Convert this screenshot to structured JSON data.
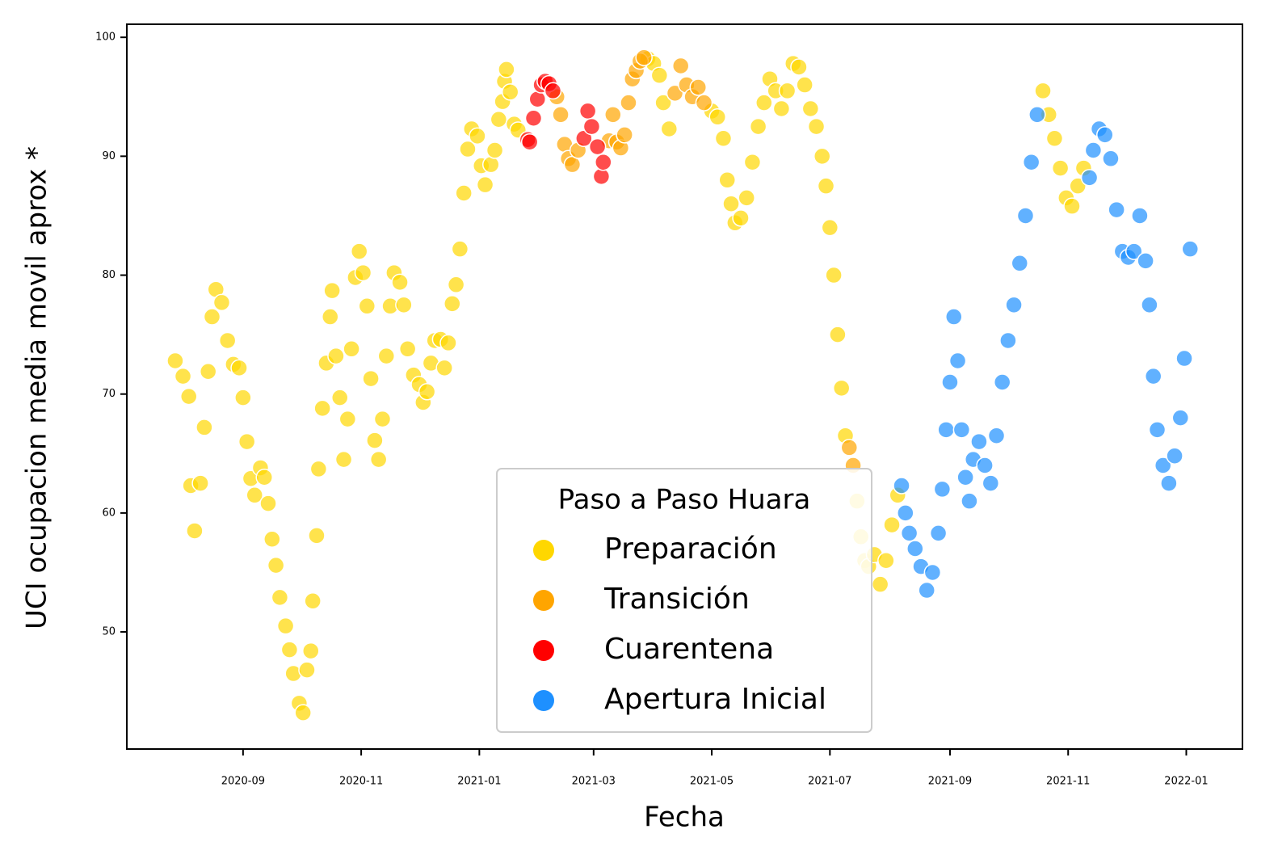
{
  "chart_data": {
    "type": "scatter",
    "x_label": "Fecha",
    "y_label": "UCI ocupacion media movil aprox *",
    "legend_title": "Paso a Paso Huara",
    "legend_position": "lower center",
    "xlim": [
      "2020-07-03",
      "2022-01-30"
    ],
    "ylim": [
      40.15,
      101.1
    ],
    "xticks": [
      "2020-09",
      "2020-11",
      "2021-01",
      "2021-03",
      "2021-05",
      "2021-07",
      "2021-09",
      "2021-11",
      "2022-01"
    ],
    "yticks": [
      50,
      60,
      70,
      80,
      90,
      100
    ],
    "series": [
      {
        "name": "Preparación",
        "color": "#FFD700",
        "x": [
          "2020-07-28",
          "2020-08-01",
          "2020-08-04",
          "2020-08-05",
          "2020-08-07",
          "2020-08-10",
          "2020-08-12",
          "2020-08-14",
          "2020-08-16",
          "2020-08-18",
          "2020-08-21",
          "2020-08-24",
          "2020-08-27",
          "2020-08-30",
          "2020-09-01",
          "2020-09-03",
          "2020-09-05",
          "2020-09-07",
          "2020-09-10",
          "2020-09-12",
          "2020-09-14",
          "2020-09-16",
          "2020-09-18",
          "2020-09-20",
          "2020-09-23",
          "2020-09-25",
          "2020-09-27",
          "2020-09-30",
          "2020-10-02",
          "2020-10-04",
          "2020-10-06",
          "2020-10-07",
          "2020-10-09",
          "2020-10-10",
          "2020-10-12",
          "2020-10-14",
          "2020-10-16",
          "2020-10-17",
          "2020-10-19",
          "2020-10-21",
          "2020-10-23",
          "2020-10-25",
          "2020-10-27",
          "2020-10-29",
          "2020-10-31",
          "2020-11-02",
          "2020-11-04",
          "2020-11-06",
          "2020-11-08",
          "2020-11-10",
          "2020-11-12",
          "2020-11-14",
          "2020-11-16",
          "2020-11-18",
          "2020-11-21",
          "2020-11-23",
          "2020-11-25",
          "2020-11-28",
          "2020-12-01",
          "2020-12-03",
          "2020-12-05",
          "2020-12-07",
          "2020-12-09",
          "2020-12-12",
          "2020-12-14",
          "2020-12-16",
          "2020-12-18",
          "2020-12-20",
          "2020-12-22",
          "2020-12-24",
          "2020-12-26",
          "2020-12-28",
          "2020-12-31",
          "2021-01-02",
          "2021-01-04",
          "2021-01-07",
          "2021-01-09",
          "2021-01-11",
          "2021-01-13",
          "2021-01-14",
          "2021-01-15",
          "2021-01-17",
          "2021-01-19",
          "2021-01-21",
          "2021-03-29",
          "2021-04-01",
          "2021-04-04",
          "2021-04-06",
          "2021-04-09",
          "2021-05-01",
          "2021-05-04",
          "2021-05-07",
          "2021-05-09",
          "2021-05-11",
          "2021-05-13",
          "2021-05-16",
          "2021-05-19",
          "2021-05-22",
          "2021-05-25",
          "2021-05-28",
          "2021-05-31",
          "2021-06-03",
          "2021-06-06",
          "2021-06-09",
          "2021-06-12",
          "2021-06-15",
          "2021-06-18",
          "2021-06-21",
          "2021-06-24",
          "2021-06-27",
          "2021-06-29",
          "2021-07-01",
          "2021-07-03",
          "2021-07-05",
          "2021-07-07",
          "2021-07-09",
          "2021-07-15",
          "2021-07-17",
          "2021-07-19",
          "2021-07-21",
          "2021-07-24",
          "2021-07-27",
          "2021-07-30",
          "2021-08-02",
          "2021-08-05",
          "2021-10-19",
          "2021-10-22",
          "2021-10-25",
          "2021-10-28",
          "2021-10-31",
          "2021-11-03",
          "2021-11-06",
          "2021-11-09"
        ],
        "values": [
          72.8,
          71.5,
          69.8,
          62.3,
          58.5,
          62.5,
          67.2,
          71.9,
          76.5,
          78.8,
          77.7,
          74.5,
          72.5,
          72.2,
          69.7,
          66,
          62.9,
          61.5,
          63.8,
          63,
          60.8,
          57.8,
          55.6,
          52.9,
          50.5,
          48.5,
          46.5,
          44,
          43.2,
          46.8,
          48.4,
          52.6,
          58.1,
          63.7,
          68.8,
          72.6,
          76.5,
          78.7,
          73.2,
          69.7,
          64.5,
          67.9,
          73.8,
          79.8,
          82,
          80.2,
          77.4,
          71.3,
          66.1,
          64.5,
          67.9,
          73.2,
          77.4,
          80.2,
          79.4,
          77.5,
          73.8,
          71.6,
          70.8,
          69.3,
          70.2,
          72.6,
          74.5,
          74.6,
          72.2,
          74.3,
          77.6,
          79.2,
          82.2,
          86.9,
          90.6,
          92.3,
          91.7,
          89.2,
          87.6,
          89.3,
          90.5,
          93.1,
          94.6,
          96.3,
          97.3,
          95.4,
          92.7,
          92.2,
          98.2,
          97.8,
          96.8,
          94.5,
          92.3,
          93.8,
          93.3,
          91.5,
          88,
          86,
          84.4,
          84.8,
          86.5,
          89.5,
          92.5,
          94.5,
          96.5,
          95.5,
          94,
          95.5,
          97.8,
          97.5,
          96,
          94,
          92.5,
          90,
          87.5,
          84,
          80,
          75,
          70.5,
          66.5,
          61,
          58,
          56,
          55.5,
          56.5,
          54,
          56,
          59,
          61.5,
          95.5,
          93.5,
          91.5,
          89,
          86.5,
          85.8,
          87.5,
          89
        ]
      },
      {
        "name": "Transición",
        "color": "#FFA500",
        "x": [
          "2021-02-10",
          "2021-02-12",
          "2021-02-14",
          "2021-02-16",
          "2021-02-18",
          "2021-02-21",
          "2021-03-09",
          "2021-03-11",
          "2021-03-13",
          "2021-03-15",
          "2021-03-17",
          "2021-03-19",
          "2021-03-21",
          "2021-03-23",
          "2021-03-25",
          "2021-03-27",
          "2021-04-12",
          "2021-04-15",
          "2021-04-18",
          "2021-04-21",
          "2021-04-24",
          "2021-04-27",
          "2021-07-11",
          "2021-07-13"
        ],
        "values": [
          95,
          93.5,
          91,
          89.8,
          89.3,
          90.5,
          91.3,
          93.5,
          91.2,
          90.7,
          91.8,
          94.5,
          96.5,
          97.2,
          98,
          98.3,
          95.3,
          97.6,
          96,
          95,
          95.8,
          94.5,
          65.5,
          64
        ]
      },
      {
        "name": "Cuarentena",
        "color": "#FF0000",
        "x": [
          "2021-01-26",
          "2021-01-27",
          "2021-01-29",
          "2021-01-31",
          "2021-02-02",
          "2021-02-04",
          "2021-02-06",
          "2021-02-08",
          "2021-02-24",
          "2021-02-26",
          "2021-02-28",
          "2021-03-03",
          "2021-03-05",
          "2021-03-06"
        ],
        "values": [
          91.4,
          91.2,
          93.2,
          94.8,
          96,
          96.3,
          96.1,
          95.5,
          91.5,
          93.8,
          92.5,
          90.8,
          88.3,
          89.5
        ]
      },
      {
        "name": "Apertura Inicial",
        "color": "#1E90FF",
        "x": [
          "2021-08-07",
          "2021-08-09",
          "2021-08-11",
          "2021-08-14",
          "2021-08-17",
          "2021-08-20",
          "2021-08-23",
          "2021-08-26",
          "2021-08-28",
          "2021-08-30",
          "2021-09-01",
          "2021-09-03",
          "2021-09-05",
          "2021-09-07",
          "2021-09-09",
          "2021-09-11",
          "2021-09-13",
          "2021-09-16",
          "2021-09-19",
          "2021-09-22",
          "2021-09-25",
          "2021-09-28",
          "2021-10-01",
          "2021-10-04",
          "2021-10-07",
          "2021-10-10",
          "2021-10-13",
          "2021-10-16",
          "2021-11-12",
          "2021-11-14",
          "2021-11-17",
          "2021-11-20",
          "2021-11-23",
          "2021-11-26",
          "2021-11-29",
          "2021-12-02",
          "2021-12-05",
          "2021-12-08",
          "2021-12-11",
          "2021-12-13",
          "2021-12-15",
          "2021-12-17",
          "2021-12-20",
          "2021-12-23",
          "2021-12-26",
          "2021-12-29",
          "2021-12-31",
          "2022-01-03"
        ],
        "values": [
          62.3,
          60,
          58.3,
          57,
          55.5,
          53.5,
          55,
          58.3,
          62,
          67,
          71,
          76.5,
          72.8,
          67,
          63,
          61,
          64.5,
          66,
          64,
          62.5,
          66.5,
          71,
          74.5,
          77.5,
          81,
          85,
          89.5,
          93.5,
          88.2,
          90.5,
          92.3,
          91.8,
          89.8,
          85.5,
          82,
          81.5,
          82,
          85,
          81.2,
          77.5,
          71.5,
          67,
          64,
          62.5,
          64.8,
          68,
          73,
          82.2
        ]
      }
    ]
  }
}
